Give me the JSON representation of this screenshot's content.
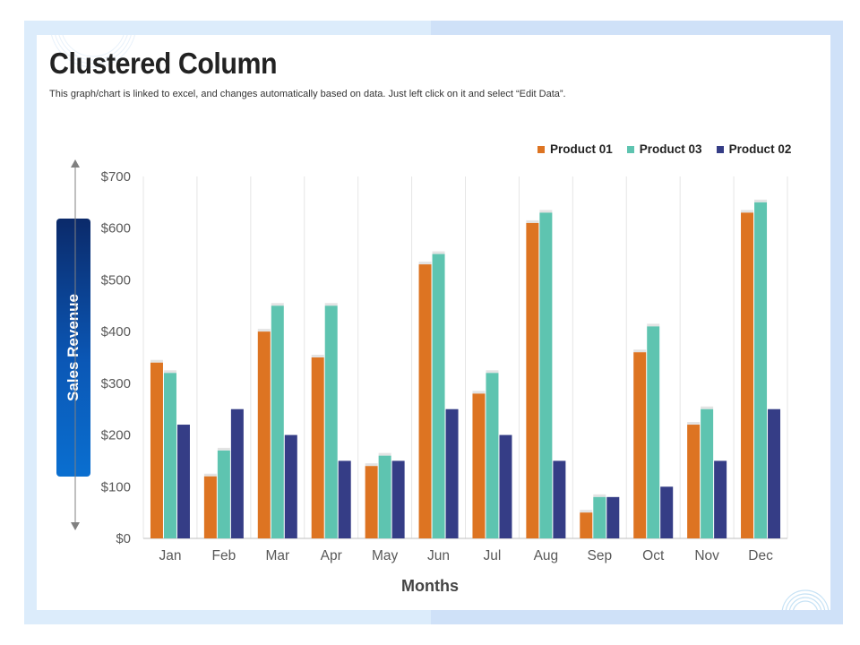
{
  "colors": {
    "product_01": "#dd7422",
    "product_03": "#5ec4b0",
    "product_02": "#353d86",
    "grid": "#e6e6e6",
    "axis": "#bfbfbf"
  },
  "chart_data": {
    "type": "bar",
    "title": "Clustered Column",
    "subtitle": "This graph/chart is linked to excel,  and changes automatically based on data. Just left click on it and select “Edit Data”.",
    "xlabel": "Months",
    "ylabel": "Sales Revenue",
    "ylim": [
      0,
      700
    ],
    "y_ticks": [
      "$0",
      "$100",
      "$200",
      "$300",
      "$400",
      "$500",
      "$600",
      "$700"
    ],
    "grid": "vertical",
    "legend_position": "top-right",
    "categories": [
      "Jan",
      "Feb",
      "Mar",
      "Apr",
      "May",
      "Jun",
      "Jul",
      "Aug",
      "Sep",
      "Oct",
      "Nov",
      "Dec"
    ],
    "series": [
      {
        "name": "Product 01",
        "values": [
          340,
          120,
          400,
          350,
          140,
          530,
          280,
          610,
          50,
          360,
          220,
          630
        ]
      },
      {
        "name": "Product 03",
        "values": [
          320,
          170,
          450,
          450,
          160,
          550,
          320,
          630,
          80,
          410,
          250,
          650
        ]
      },
      {
        "name": "Product 02",
        "values": [
          220,
          250,
          200,
          150,
          150,
          250,
          200,
          150,
          80,
          100,
          150,
          250
        ]
      }
    ]
  }
}
